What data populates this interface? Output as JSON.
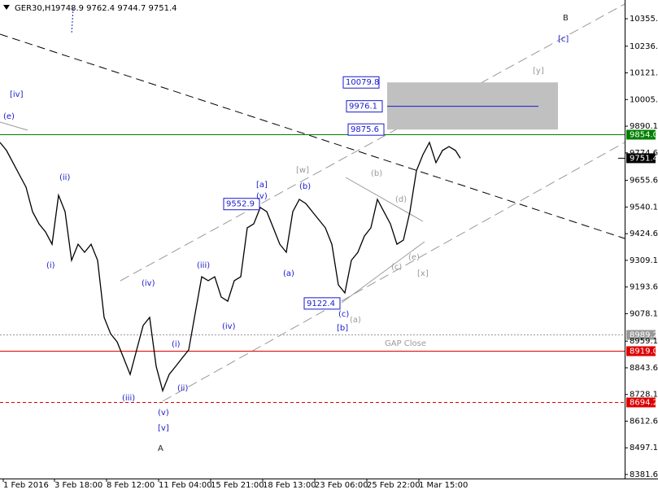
{
  "chart_data": {
    "type": "line",
    "title": "GER30,H1",
    "subtitle": "9748.9 9762.4 9744.7 9751.4",
    "color": "#000000",
    "x": [
      0,
      8,
      16,
      24,
      32,
      40,
      48,
      56,
      64,
      72,
      80,
      88,
      96,
      104,
      112,
      120,
      128,
      136,
      144,
      152,
      160,
      168,
      176,
      184,
      192,
      200,
      208,
      216,
      224,
      232,
      240,
      248,
      256,
      264,
      272,
      280,
      288,
      296,
      304,
      312,
      320,
      328,
      336,
      344,
      352,
      360,
      368,
      376,
      384,
      392,
      400,
      408,
      416,
      424,
      432,
      440,
      448,
      456,
      464,
      472,
      480,
      488,
      496,
      504,
      512,
      520,
      528,
      536,
      544,
      552,
      560,
      566
    ],
    "values": [
      9820,
      9785,
      9732,
      9679,
      9626,
      9520,
      9467,
      9432,
      9379,
      9591,
      9520,
      9309,
      9379,
      9344,
      9379,
      9309,
      9062,
      8991,
      8956,
      8886,
      8815,
      8921,
      9027,
      9062,
      8850,
      8744,
      8815,
      8850,
      8886,
      8921,
      9080,
      9238,
      9221,
      9238,
      9150,
      9132,
      9221,
      9238,
      9450,
      9467,
      9538,
      9520,
      9450,
      9379,
      9344,
      9520,
      9573,
      9555,
      9520,
      9485,
      9450,
      9379,
      9203,
      9168,
      9309,
      9344,
      9414,
      9450,
      9573,
      9520,
      9467,
      9379,
      9397,
      9520,
      9697,
      9767,
      9820,
      9732,
      9785,
      9802,
      9785,
      9751.4
    ],
    "xlim": [
      0,
      768
    ],
    "xticks": [
      {
        "value": 4,
        "label": "1 Feb 2016"
      },
      {
        "value": 67,
        "label": "3 Feb 18:00"
      },
      {
        "value": 131,
        "label": "8 Feb 12:00"
      },
      {
        "value": 195,
        "label": "11 Feb 04:00"
      },
      {
        "value": 259,
        "label": "15 Feb 21:00"
      },
      {
        "value": 323,
        "label": "18 Feb 13:00"
      },
      {
        "value": 387,
        "label": "23 Feb 06:00"
      },
      {
        "value": 451,
        "label": "25 Feb 22:00"
      },
      {
        "value": 515,
        "label": "1 Mar 15:00"
      }
    ],
    "ylim": [
      8364,
      10436.7
    ],
    "yticks": [
      10355.6,
      10236.6,
      10121.1,
      10005.6,
      9890.1,
      9774.6,
      9655.6,
      9540.1,
      9424.6,
      9309.1,
      9193.6,
      9078.1,
      8959.1,
      8843.6,
      8728.1,
      8612.6,
      8497.1,
      8381.6
    ],
    "levels": [
      {
        "value": 9854,
        "label": "9854.0",
        "color": "#008000",
        "dash": "solid"
      },
      {
        "value": 8989.2,
        "label": "8989.2",
        "color": "#999999",
        "dash": "dotted"
      },
      {
        "value": 8919,
        "label": "8919.0",
        "color": "#dd0000",
        "dash": "solid"
      },
      {
        "value": 8694.2,
        "label": "8694.2",
        "color": "#dd0000",
        "dash": "dashed"
      }
    ],
    "last_price": 9751.4,
    "targets": [
      10079.8,
      9976.1,
      9875.6,
      9552.9,
      9122.4
    ],
    "annotations": [
      {
        "text": "[iv]",
        "color": "#1a1acc"
      },
      {
        "text": "(e)",
        "color": "#1a1acc"
      },
      {
        "text": "(ii)",
        "color": "#1a1acc"
      },
      {
        "text": "(i)",
        "color": "#1a1acc"
      },
      {
        "text": "(iv)",
        "color": "#1a1acc"
      },
      {
        "text": "(iii)",
        "color": "#1a1acc"
      },
      {
        "text": "(i)",
        "color": "#1a1acc"
      },
      {
        "text": "(ii)",
        "color": "#1a1acc"
      },
      {
        "text": "(v)",
        "color": "#1a1acc"
      },
      {
        "text": "[v]",
        "color": "#1a1acc"
      },
      {
        "text": "A",
        "color": "#222222"
      },
      {
        "text": "(iii)",
        "color": "#1a1acc"
      },
      {
        "text": "(iv)",
        "color": "#1a1acc"
      },
      {
        "text": "[a]",
        "color": "#1a1acc"
      },
      {
        "text": "(v)",
        "color": "#1a1acc"
      },
      {
        "text": "(b)",
        "color": "#1a1acc"
      },
      {
        "text": "(a)",
        "color": "#1a1acc"
      },
      {
        "text": "[w]",
        "color": "#999999"
      },
      {
        "text": "(b)",
        "color": "#999999"
      },
      {
        "text": "(d)",
        "color": "#999999"
      },
      {
        "text": "(c)",
        "color": "#999999"
      },
      {
        "text": "(e)",
        "color": "#999999"
      },
      {
        "text": "[x]",
        "color": "#999999"
      },
      {
        "text": "(c)",
        "color": "#1a1acc"
      },
      {
        "text": "(a)",
        "color": "#999999"
      },
      {
        "text": "[b]",
        "color": "#1a1acc"
      },
      {
        "text": "[c]",
        "color": "#1a1acc"
      },
      {
        "text": "[y]",
        "color": "#999999"
      },
      {
        "text": "B",
        "color": "#222222"
      },
      {
        "text": "GAP Close",
        "color": "#999999"
      }
    ]
  }
}
